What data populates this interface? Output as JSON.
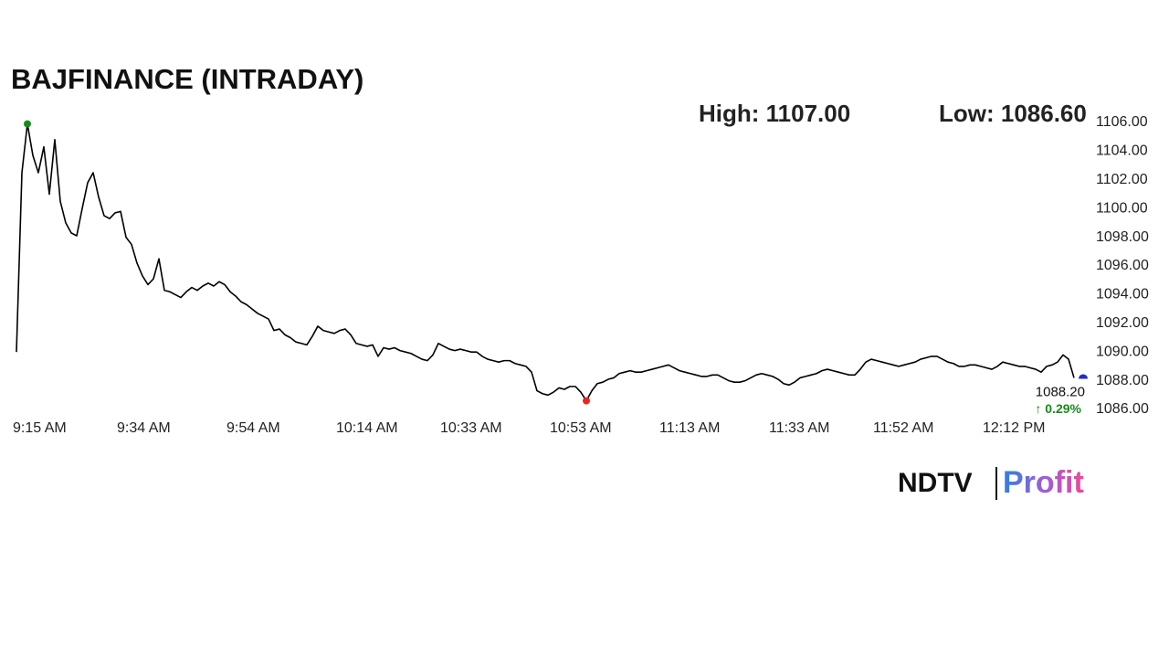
{
  "chart_data": {
    "type": "line",
    "title": "BAJFINANCE (INTRADAY)",
    "stats": [
      "High: 1107.00",
      "Low: 1086.60"
    ],
    "categories": [
      "9:15 AM",
      null,
      null,
      null,
      null,
      null,
      null,
      null,
      null,
      null,
      null,
      null,
      null,
      null,
      null,
      null,
      null,
      null,
      null,
      "9:34 AM",
      null,
      null,
      null,
      null,
      null,
      null,
      null,
      null,
      null,
      null,
      null,
      null,
      null,
      null,
      null,
      null,
      null,
      null,
      null,
      "9:54 AM",
      null,
      null,
      null,
      null,
      null,
      null,
      null,
      null,
      null,
      null,
      null,
      null,
      null,
      null,
      null,
      null,
      null,
      null,
      null,
      "10:14 AM",
      null,
      null,
      null,
      null,
      null,
      null,
      null,
      null,
      null,
      null,
      null,
      null,
      null,
      null,
      null,
      null,
      null,
      null,
      "10:33 AM",
      null,
      null,
      null,
      null,
      null,
      null,
      null,
      null,
      null,
      null,
      null,
      null,
      null,
      null,
      null,
      null,
      null,
      null,
      null,
      "10:53 AM",
      null,
      null,
      null,
      null,
      null,
      null,
      null,
      null,
      null,
      null,
      null,
      null,
      null,
      null,
      null,
      null,
      null,
      null,
      null,
      "11:13 AM",
      null,
      null,
      null,
      null,
      null,
      null,
      null,
      null,
      null,
      null,
      null,
      null,
      null,
      null,
      null,
      null,
      null,
      null,
      null,
      "11:33 AM",
      null,
      null,
      null,
      null,
      null,
      null,
      null,
      null,
      null,
      null,
      null,
      null,
      null,
      null,
      null,
      null,
      null,
      null,
      "11:52 AM",
      null,
      null,
      null,
      null,
      null,
      null,
      null,
      null,
      null,
      null,
      null,
      null,
      null,
      null,
      null,
      null,
      null,
      null,
      null,
      "12:12 PM",
      null,
      null,
      null,
      null,
      null,
      null,
      null,
      null,
      null,
      null,
      null,
      null,
      null,
      null,
      null,
      null
    ],
    "values": [
      1090.0,
      1102.5,
      1105.9,
      1103.7,
      1102.5,
      1104.3,
      1101.0,
      1104.8,
      1100.5,
      1099.0,
      1098.3,
      1098.1,
      1100.0,
      1101.8,
      1102.5,
      1100.8,
      1099.5,
      1099.3,
      1099.7,
      1099.8,
      1098.0,
      1097.5,
      1096.2,
      1095.3,
      1094.7,
      1095.1,
      1096.5,
      1094.3,
      1094.2,
      1094.0,
      1093.8,
      1094.2,
      1094.5,
      1094.3,
      1094.6,
      1094.8,
      1094.6,
      1094.9,
      1094.7,
      1094.2,
      1093.9,
      1093.5,
      1093.3,
      1093.0,
      1092.7,
      1092.5,
      1092.3,
      1091.5,
      1091.6,
      1091.2,
      1091.0,
      1090.7,
      1090.6,
      1090.5,
      1091.1,
      1091.8,
      1091.5,
      1091.4,
      1091.3,
      1091.5,
      1091.6,
      1091.2,
      1090.6,
      1090.5,
      1090.4,
      1090.5,
      1089.7,
      1090.3,
      1090.2,
      1090.3,
      1090.1,
      1090.0,
      1089.9,
      1089.7,
      1089.5,
      1089.4,
      1089.8,
      1090.6,
      1090.4,
      1090.2,
      1090.1,
      1090.2,
      1090.1,
      1090.0,
      1090.0,
      1089.7,
      1089.5,
      1089.4,
      1089.3,
      1089.4,
      1089.4,
      1089.2,
      1089.1,
      1089.0,
      1088.6,
      1087.3,
      1087.1,
      1087.0,
      1087.2,
      1087.5,
      1087.4,
      1087.6,
      1087.6,
      1087.2,
      1086.6,
      1087.3,
      1087.8,
      1087.9,
      1088.1,
      1088.2,
      1088.5,
      1088.6,
      1088.7,
      1088.6,
      1088.6,
      1088.7,
      1088.8,
      1088.9,
      1089.0,
      1089.1,
      1088.9,
      1088.7,
      1088.6,
      1088.5,
      1088.4,
      1088.3,
      1088.3,
      1088.4,
      1088.4,
      1088.2,
      1088.0,
      1087.9,
      1087.9,
      1088.0,
      1088.2,
      1088.4,
      1088.5,
      1088.4,
      1088.3,
      1088.1,
      1087.8,
      1087.7,
      1087.9,
      1088.2,
      1088.3,
      1088.4,
      1088.5,
      1088.7,
      1088.8,
      1088.7,
      1088.6,
      1088.5,
      1088.4,
      1088.4,
      1088.8,
      1089.3,
      1089.5,
      1089.4,
      1089.3,
      1089.2,
      1089.1,
      1089.0,
      1089.1,
      1089.2,
      1089.3,
      1089.5,
      1089.6,
      1089.7,
      1089.7,
      1089.5,
      1089.3,
      1089.2,
      1089.0,
      1089.0,
      1089.1,
      1089.1,
      1089.0,
      1088.9,
      1088.8,
      1089.0,
      1089.3,
      1089.2,
      1089.1,
      1089.0,
      1089.0,
      1088.9,
      1088.8,
      1088.6,
      1089.0,
      1089.1,
      1089.3,
      1089.8,
      1089.5,
      1088.2
    ],
    "color": "#000000",
    "high_color": "#1a8a1a",
    "low_color": "#e8251f",
    "last_color": "#1f2fbf",
    "last_price": 1088.2,
    "last_price_label": "1088.20",
    "change_label": "↑ 0.29%",
    "ylim": [
      1086,
      1106
    ],
    "yticks": [
      {
        "value": 1086,
        "label": "1086.00"
      },
      {
        "value": 1088,
        "label": "1088.00"
      },
      {
        "value": 1090,
        "label": "1090.00"
      },
      {
        "value": 1092,
        "label": "1092.00"
      },
      {
        "value": 1094,
        "label": "1094.00"
      },
      {
        "value": 1096,
        "label": "1096.00"
      },
      {
        "value": 1098,
        "label": "1098.00"
      },
      {
        "value": 1100,
        "label": "1100.00"
      },
      {
        "value": 1102,
        "label": "1102.00"
      },
      {
        "value": 1104,
        "label": "1104.00"
      },
      {
        "value": 1106,
        "label": "1106.00"
      }
    ],
    "grid": false,
    "logo": {
      "brand": "NDTV",
      "product": "Profit"
    }
  }
}
